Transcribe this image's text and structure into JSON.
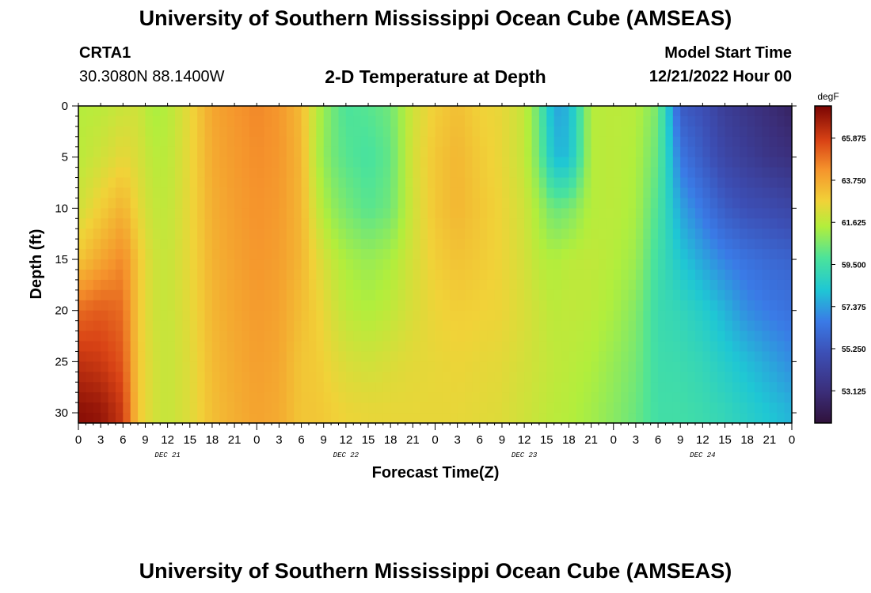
{
  "header": {
    "title": "University of Southern Mississippi Ocean Cube (AMSEAS)",
    "station": "CRTA1",
    "coords": "30.3080N  88.1400W",
    "subtitle": "2-D Temperature at Depth",
    "start_label": "Model Start Time",
    "start_value": "12/21/2022 Hour 00"
  },
  "footer": {
    "title": "University of Southern Mississippi Ocean Cube (AMSEAS)"
  },
  "chart_data": {
    "type": "heatmap",
    "xlabel": "Forecast Time(Z)",
    "ylabel": "Depth (ft)",
    "x_range_hours": [
      0,
      96
    ],
    "y_range_ft": [
      0,
      31
    ],
    "y_inverted": true,
    "x_tick_labels": [
      "0",
      "3",
      "6",
      "9",
      "12",
      "15",
      "18",
      "21",
      "0",
      "3",
      "6",
      "9",
      "12",
      "15",
      "18",
      "21",
      "0",
      "3",
      "6",
      "9",
      "12",
      "15",
      "18",
      "21",
      "0",
      "3",
      "6",
      "9",
      "12",
      "15",
      "18",
      "21",
      "0"
    ],
    "day_labels": [
      {
        "label": "DEC 21",
        "hour": 12
      },
      {
        "label": "DEC 22",
        "hour": 36
      },
      {
        "label": "DEC 23",
        "hour": 60
      },
      {
        "label": "DEC 24",
        "hour": 84
      }
    ],
    "y_ticks": [
      0,
      5,
      10,
      15,
      20,
      25,
      30
    ],
    "depths_ft": [
      0,
      5,
      10,
      15,
      20,
      25,
      30
    ],
    "times_hr": [
      0,
      3,
      6,
      8,
      10,
      12,
      15,
      18,
      21,
      24,
      27,
      30,
      32,
      34,
      36,
      39,
      42,
      45,
      48,
      51,
      54,
      57,
      60,
      62,
      64,
      66,
      69,
      72,
      75,
      78,
      81,
      84,
      87,
      90,
      93,
      96
    ],
    "temperature_degF": [
      [
        61.5,
        61.6,
        61.9,
        62.0,
        61.3,
        61.5,
        62.5,
        63.8,
        64.2,
        64.5,
        64.2,
        63.3,
        61.6,
        60.5,
        59.8,
        60.0,
        60.4,
        62.0,
        62.8,
        63.2,
        62.7,
        62.5,
        61.8,
        60.2,
        57.5,
        57.8,
        61.5,
        61.6,
        61.5,
        60.5,
        55.5,
        55.0,
        54.0,
        53.5,
        53.0,
        52.5
      ],
      [
        61.6,
        62.0,
        62.5,
        62.2,
        61.6,
        61.6,
        62.5,
        63.7,
        64.1,
        64.4,
        64.2,
        63.4,
        61.5,
        60.5,
        60.0,
        59.7,
        60.2,
        62.1,
        63.0,
        63.4,
        62.9,
        62.5,
        61.8,
        60.4,
        58.0,
        58.0,
        61.5,
        61.6,
        61.4,
        60.2,
        56.5,
        55.5,
        54.5,
        54.0,
        53.5,
        53.2
      ],
      [
        62.0,
        62.8,
        63.5,
        62.5,
        61.8,
        61.7,
        62.5,
        63.6,
        64.0,
        64.3,
        64.1,
        63.4,
        61.9,
        61.0,
        60.5,
        60.0,
        60.4,
        62.0,
        63.0,
        63.4,
        63.0,
        62.6,
        62.0,
        61.2,
        60.3,
        60.5,
        61.5,
        61.6,
        61.3,
        59.8,
        57.5,
        56.5,
        55.5,
        55.0,
        54.8,
        54.5
      ],
      [
        63.0,
        63.8,
        64.5,
        63.0,
        62.0,
        61.8,
        62.5,
        63.5,
        63.9,
        64.2,
        64.0,
        63.4,
        62.5,
        61.8,
        61.3,
        61.0,
        61.3,
        62.1,
        62.8,
        63.1,
        62.9,
        62.6,
        62.1,
        61.6,
        61.4,
        61.6,
        61.7,
        61.5,
        61.1,
        59.5,
        58.3,
        57.5,
        56.8,
        56.3,
        56.0,
        55.8
      ],
      [
        65.0,
        65.3,
        65.0,
        63.0,
        62.0,
        61.8,
        62.4,
        63.4,
        63.8,
        64.1,
        63.9,
        63.2,
        62.8,
        62.2,
        61.7,
        61.4,
        61.7,
        62.2,
        62.6,
        62.8,
        62.7,
        62.6,
        62.2,
        61.9,
        61.6,
        61.7,
        61.6,
        61.3,
        60.7,
        59.3,
        59.0,
        58.5,
        57.8,
        57.0,
        56.6,
        56.3
      ],
      [
        66.2,
        66.0,
        65.4,
        63.0,
        62.1,
        61.8,
        62.3,
        63.3,
        63.7,
        64.0,
        63.8,
        63.0,
        62.9,
        62.5,
        62.2,
        62.0,
        62.2,
        62.4,
        62.5,
        62.6,
        62.5,
        62.4,
        62.1,
        61.9,
        61.7,
        61.6,
        61.4,
        61.0,
        60.5,
        59.4,
        59.3,
        59.0,
        58.5,
        58.0,
        57.5,
        57.0
      ],
      [
        67.2,
        67.0,
        66.0,
        63.0,
        62.1,
        61.8,
        62.3,
        63.2,
        63.6,
        63.9,
        63.7,
        63.0,
        63.0,
        62.8,
        62.6,
        62.5,
        62.5,
        62.5,
        62.5,
        62.5,
        62.4,
        62.3,
        62.0,
        61.8,
        61.6,
        61.5,
        61.2,
        60.8,
        60.3,
        59.5,
        59.5,
        59.3,
        59.0,
        58.6,
        58.2,
        57.8
      ]
    ],
    "colorbar": {
      "unit": "degF",
      "min": 51.5,
      "max": 67.5,
      "ticks": [
        "65.875",
        "63.750",
        "61.625",
        "59.500",
        "57.375",
        "55.250",
        "53.125"
      ],
      "tick_values": [
        65.875,
        63.75,
        61.625,
        59.5,
        57.375,
        55.25,
        53.125
      ]
    }
  }
}
